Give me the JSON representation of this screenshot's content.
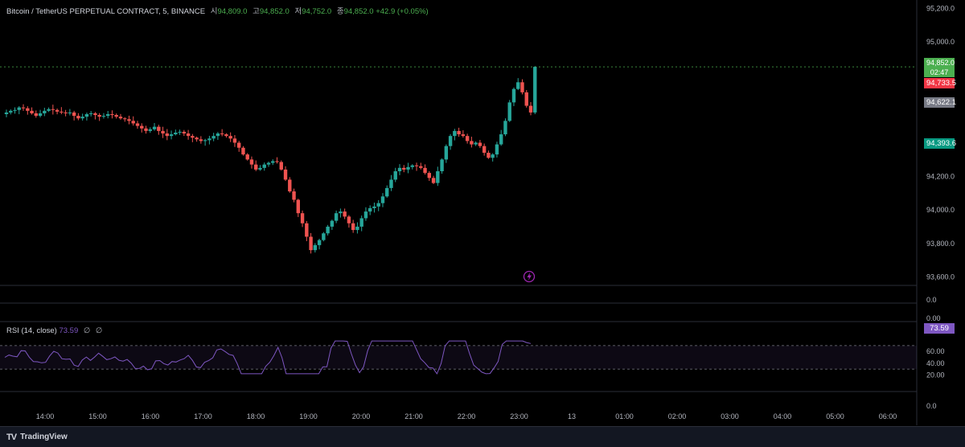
{
  "symbol": {
    "title": "Bitcoin / TetherUS PERPETUAL CONTRACT, 5, BINANCE",
    "open_label": "시",
    "open_value": "94,809.0",
    "high_label": "고",
    "high_value": "94,852.0",
    "low_label": "저",
    "low_value": "94,752.0",
    "close_label": "종",
    "close_value": "94,852.0",
    "change": "+42.9 (+0.05%)"
  },
  "price_axis": {
    "ticks": [
      "95,200.0",
      "95,000.0",
      "94,200.0",
      "94,000.0",
      "93,800.0",
      "93,600.0"
    ],
    "tick_values": [
      95200,
      95000,
      94200,
      94000,
      93800,
      93600
    ],
    "zero_label": "0.0",
    "zero_label_2": "0.00"
  },
  "badges": {
    "last_price": "94,852.0",
    "countdown": "02:47",
    "high_marker": "94,733.5",
    "mid_marker": "94,622.1",
    "low_marker": "94,393.6"
  },
  "rsi": {
    "title": "RSI (14, close)",
    "value": "73.59",
    "na1": "∅",
    "na2": "∅",
    "badge": "73.59",
    "ticks": [
      "60.00",
      "40.00",
      "20.00"
    ],
    "tick_values": [
      60,
      40,
      20
    ],
    "bottom_label": "0.0"
  },
  "time_axis": {
    "labels": [
      "14:00",
      "15:00",
      "16:00",
      "17:00",
      "18:00",
      "19:00",
      "20:00",
      "21:00",
      "22:00",
      "23:00",
      "13",
      "01:00",
      "02:00",
      "03:00",
      "04:00",
      "05:00",
      "06:00"
    ]
  },
  "footer": {
    "brand": "TradingView",
    "logo_mark": "TV"
  },
  "colors": {
    "up": "#26a69a",
    "down": "#ef5350",
    "rsi_line": "#7e57c2",
    "background": "#000000"
  },
  "chart_data": [
    {
      "type": "candlestick",
      "title": "",
      "ylim": [
        93550,
        95250
      ],
      "y_ticks": [
        95200,
        95000,
        94200,
        94000,
        93800,
        93600
      ],
      "x_labels": [
        "14:00",
        "15:00",
        "16:00",
        "17:00",
        "18:00",
        "19:00",
        "20:00",
        "21:00",
        "22:00",
        "23:00"
      ],
      "close_series": [
        94580,
        94590,
        94595,
        94610,
        94605,
        94590,
        94575,
        94560,
        94575,
        94590,
        94600,
        94595,
        94585,
        94580,
        94575,
        94580,
        94560,
        94545,
        94555,
        94570,
        94575,
        94565,
        94555,
        94560,
        94570,
        94565,
        94555,
        94545,
        94540,
        94530,
        94515,
        94500,
        94485,
        94470,
        94480,
        94495,
        94470,
        94455,
        94440,
        94450,
        94460,
        94465,
        94455,
        94440,
        94430,
        94420,
        94410,
        94415,
        94425,
        94440,
        94455,
        94450,
        94440,
        94425,
        94400,
        94370,
        94330,
        94300,
        94270,
        94240,
        94250,
        94270,
        94280,
        94290,
        94285,
        94240,
        94180,
        94110,
        94060,
        93980,
        93920,
        93840,
        93760,
        93790,
        93820,
        93860,
        93900,
        93935,
        93980,
        93990,
        93960,
        93920,
        93880,
        93900,
        93950,
        93990,
        94010,
        94020,
        94040,
        94080,
        94130,
        94180,
        94230,
        94250,
        94240,
        94255,
        94265,
        94260,
        94250,
        94220,
        94190,
        94160,
        94230,
        94300,
        94380,
        94440,
        94470,
        94450,
        94440,
        94410,
        94390,
        94400,
        94380,
        94340,
        94310,
        94330,
        94390,
        94450,
        94530,
        94640,
        94720,
        94760,
        94700,
        94620,
        94580
      ],
      "last_price": 94852.0,
      "markers": [
        94733.5,
        94622.1,
        94393.6
      ]
    },
    {
      "type": "line",
      "title": "RSI (14, close)",
      "ylim": [
        0,
        100
      ],
      "bands": [
        30,
        70
      ],
      "last_value": 73.59
    }
  ]
}
